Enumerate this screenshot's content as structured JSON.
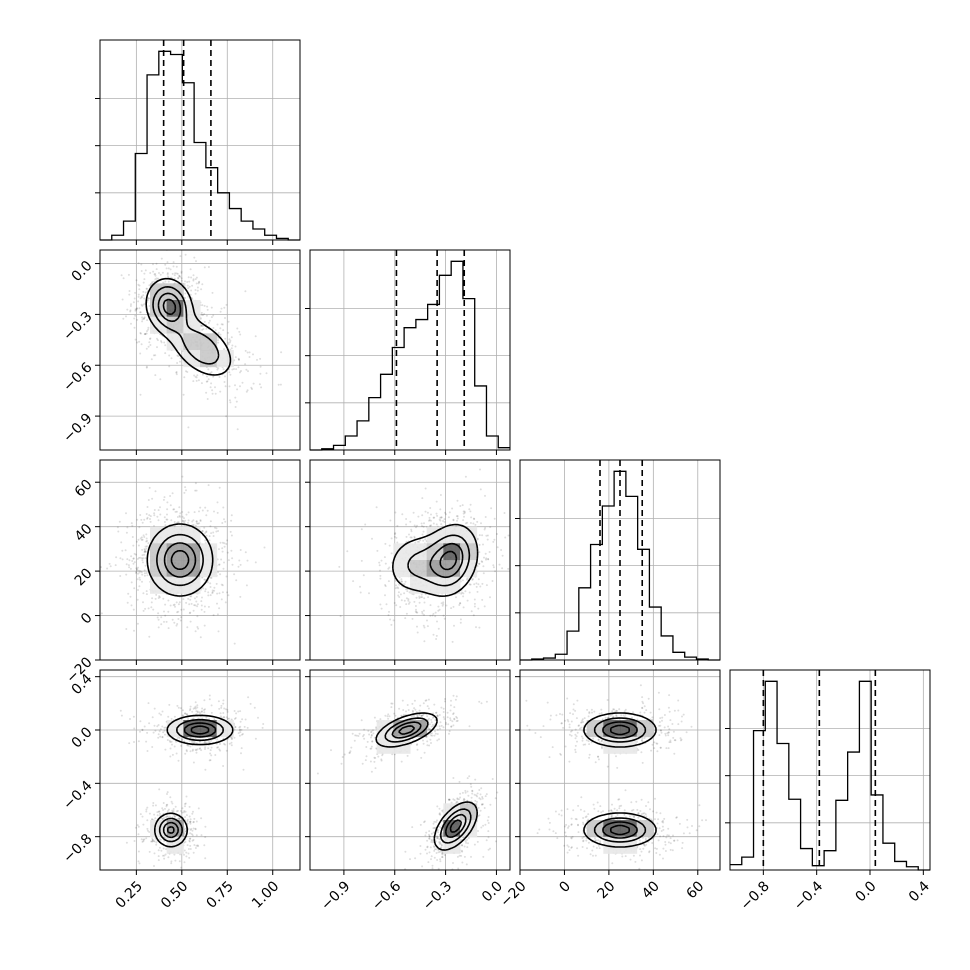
{
  "chart_data": {
    "type": "corner",
    "parameters": [
      {
        "range": [
          0.05,
          1.15
        ],
        "ticks": [
          0.25,
          0.5,
          0.75,
          1.0
        ],
        "tick_labels": [
          "0.25",
          "0.50",
          "0.75",
          "1.00"
        ],
        "quantiles": [
          0.4,
          0.51,
          0.66
        ]
      },
      {
        "range": [
          -1.1,
          0.08
        ],
        "ticks": [
          -0.9,
          -0.6,
          -0.3,
          0.0
        ],
        "tick_labels": [
          "−0.9",
          "−0.6",
          "−0.3",
          "0.0"
        ],
        "quantiles": [
          -0.59,
          -0.35,
          -0.19
        ]
      },
      {
        "range": [
          -20,
          70
        ],
        "ticks": [
          -20,
          0,
          20,
          40,
          60
        ],
        "tick_labels": [
          "−20",
          "0",
          "20",
          "40",
          "60"
        ],
        "quantiles": [
          16,
          25,
          35
        ]
      },
      {
        "range": [
          -1.05,
          0.45
        ],
        "ticks": [
          -0.8,
          -0.4,
          0.0,
          0.4
        ],
        "tick_labels": [
          "−0.8",
          "−0.4",
          "0.0",
          "0.4"
        ],
        "quantiles": [
          -0.8,
          -0.38,
          0.04
        ]
      }
    ],
    "histograms": [
      {
        "param": 0,
        "counts": [
          0,
          3,
          12,
          55,
          105,
          120,
          118,
          100,
          62,
          46,
          30,
          20,
          12,
          7,
          3,
          1,
          0
        ]
      },
      {
        "param": 1,
        "counts": [
          0,
          1,
          4,
          12,
          25,
          45,
          65,
          88,
          105,
          112,
          125,
          150,
          162,
          130,
          55,
          12,
          2
        ]
      },
      {
        "param": 2,
        "counts": [
          0,
          1,
          2,
          6,
          30,
          75,
          120,
          160,
          196,
          170,
          115,
          55,
          25,
          8,
          3,
          1,
          0
        ]
      },
      {
        "param": 3,
        "counts": [
          5,
          12,
          130,
          176,
          118,
          66,
          20,
          4,
          18,
          65,
          110,
          176,
          70,
          25,
          8,
          3,
          0
        ]
      }
    ],
    "density_components": [
      {
        "xy": [
          0,
          1
        ],
        "blobs": [
          {
            "cx": 0.43,
            "cy": -0.25,
            "sx": 0.07,
            "sy": 0.09,
            "rho": -0.1,
            "w": 1.0
          },
          {
            "cx": 0.61,
            "cy": -0.5,
            "sx": 0.1,
            "sy": 0.1,
            "rho": -0.45,
            "w": 0.7
          }
        ]
      },
      {
        "xy": [
          0,
          2
        ],
        "blobs": [
          {
            "cx": 0.49,
            "cy": 25,
            "sx": 0.1,
            "sy": 9,
            "rho": 0.0,
            "w": 1.0
          }
        ]
      },
      {
        "xy": [
          1,
          2
        ],
        "blobs": [
          {
            "cx": -0.27,
            "cy": 25,
            "sx": 0.09,
            "sy": 9,
            "rho": 0.2,
            "w": 1.0
          },
          {
            "cx": -0.48,
            "cy": 23,
            "sx": 0.1,
            "sy": 8,
            "rho": 0.1,
            "w": 0.5
          }
        ]
      },
      {
        "xy": [
          0,
          3
        ],
        "blobs": [
          {
            "cx": 0.6,
            "cy": 0.0,
            "sx": 0.1,
            "sy": 0.06,
            "rho": 0.0,
            "w": 1.0
          },
          {
            "cx": 0.44,
            "cy": -0.75,
            "sx": 0.05,
            "sy": 0.07,
            "rho": 0.0,
            "w": 0.95
          }
        ]
      },
      {
        "xy": [
          1,
          3
        ],
        "blobs": [
          {
            "cx": -0.53,
            "cy": 0.0,
            "sx": 0.1,
            "sy": 0.07,
            "rho": 0.55,
            "w": 1.0
          },
          {
            "cx": -0.24,
            "cy": -0.72,
            "sx": 0.07,
            "sy": 0.1,
            "rho": 0.55,
            "w": 1.0
          }
        ]
      },
      {
        "xy": [
          2,
          3
        ],
        "blobs": [
          {
            "cx": 25,
            "cy": 0.0,
            "sx": 9,
            "sy": 0.07,
            "rho": 0.0,
            "w": 1.0
          },
          {
            "cx": 25,
            "cy": -0.75,
            "sx": 9,
            "sy": 0.07,
            "rho": 0.0,
            "w": 1.0
          }
        ]
      }
    ],
    "contour_levels": [
      0.2,
      0.45,
      0.7,
      0.9
    ],
    "grid": true,
    "title": "",
    "xlabel": "",
    "ylabel": ""
  }
}
